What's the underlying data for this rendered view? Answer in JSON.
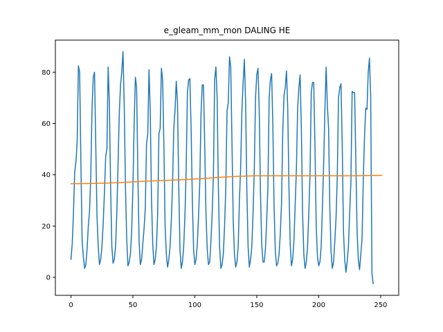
{
  "chart_data": {
    "type": "line",
    "title": "e_gleam_mm_mon DALING HE",
    "xlabel": "",
    "ylabel": "",
    "xlim": [
      -12.6,
      264.6
    ],
    "ylim": [
      -7.0,
      92.5
    ],
    "grid": false,
    "legend": "none",
    "xticks": [
      0,
      50,
      100,
      150,
      200,
      250
    ],
    "yticks": [
      0,
      20,
      40,
      60,
      80
    ],
    "series": [
      {
        "color": "#1f77b4",
        "values": [
          7,
          13,
          25,
          41,
          45,
          53,
          82.5,
          80,
          45,
          14,
          8,
          3.5,
          5,
          11,
          20,
          26,
          40,
          66,
          78,
          80,
          52,
          24,
          12,
          5,
          7,
          12,
          21,
          33,
          47,
          50,
          82,
          68,
          35,
          12,
          5.5,
          7,
          12,
          25,
          44,
          64,
          75,
          80,
          88,
          67,
          35,
          15,
          4.5,
          6,
          9,
          18,
          35,
          60,
          78,
          74,
          40,
          14,
          5,
          7,
          13,
          19,
          27,
          52,
          56,
          81,
          65,
          31,
          13,
          5,
          7,
          12,
          25,
          56,
          58,
          81.5,
          77,
          52,
          20,
          9,
          4,
          7,
          12,
          22,
          36,
          58,
          65,
          76.5,
          68,
          36,
          11,
          3.5,
          6,
          12,
          24,
          42,
          72,
          77,
          77.5,
          58,
          30,
          11,
          5,
          7,
          13,
          24,
          37,
          64,
          75,
          75,
          51,
          25,
          11,
          5,
          6,
          14,
          25,
          40,
          77,
          82,
          70,
          35,
          12,
          3.5,
          5,
          9,
          20,
          35,
          65,
          68,
          86,
          82,
          52,
          22,
          9,
          4,
          6,
          12,
          30,
          43,
          65,
          76,
          85,
          68,
          34,
          12,
          4,
          7,
          12,
          25,
          42,
          70,
          79,
          81.5,
          65,
          33,
          13,
          6,
          6,
          11,
          22,
          35,
          70,
          77,
          79.5,
          59,
          27,
          10,
          4.5,
          5.5,
          9,
          17,
          29,
          57,
          71,
          74,
          80.5,
          66,
          35,
          13,
          4.5,
          7,
          14,
          28,
          42,
          66,
          74,
          79,
          58,
          25,
          9,
          3.5,
          6,
          12,
          25,
          40,
          72,
          76,
          76,
          51,
          20,
          8,
          4.5,
          6,
          12,
          27,
          44,
          65,
          82,
          67,
          58,
          27,
          10,
          3.5,
          6,
          14,
          23,
          39,
          70,
          74,
          75.5,
          52,
          18,
          7,
          2,
          6,
          12,
          25,
          37,
          72.5,
          72,
          72,
          45,
          18,
          7,
          3,
          9,
          15,
          38,
          55,
          66,
          65.5,
          80,
          85.5,
          70,
          1.5,
          -2.5
        ]
      },
      {
        "color": "#ff7f0e",
        "x": [
          0,
          15,
          30,
          45,
          60,
          75,
          90,
          105,
          120,
          135,
          150,
          165,
          180,
          195,
          210,
          225,
          240,
          251
        ],
        "values": [
          36.5,
          36.6,
          36.8,
          37.1,
          37.5,
          37.8,
          38.1,
          38.5,
          39.0,
          39.4,
          39.6,
          39.6,
          39.6,
          39.6,
          39.6,
          39.6,
          39.7,
          39.8
        ]
      }
    ]
  }
}
